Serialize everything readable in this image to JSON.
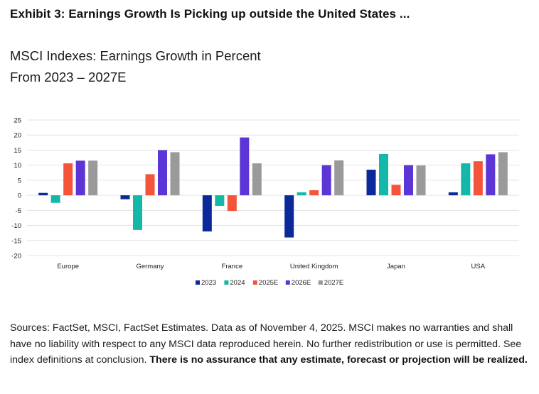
{
  "header": {
    "exhibit_title": "Exhibit 3: Earnings Growth Is Picking up outside the United States ...",
    "subtitle_line1": "MSCI Indexes: Earnings Growth in Percent",
    "subtitle_line2": "From 2023 – 2027E"
  },
  "chart_data": {
    "type": "bar",
    "title": "MSCI Indexes: Earnings Growth in Percent",
    "subtitle": "From 2023 – 2027E",
    "xlabel": "",
    "ylabel": "",
    "ylim": [
      -20,
      25
    ],
    "yticks": [
      25,
      20,
      15,
      10,
      5,
      0,
      -5,
      -10,
      -15,
      -20
    ],
    "grid": true,
    "legend_position": "bottom",
    "categories": [
      "Europe",
      "Germany",
      "France",
      "United Kingdom",
      "Japan",
      "USA"
    ],
    "series": [
      {
        "name": "2023",
        "color": "#0b2a99",
        "values": [
          0.8,
          -1.3,
          -12.0,
          -14.0,
          8.5,
          1.0
        ]
      },
      {
        "name": "2024",
        "color": "#13b8a8",
        "values": [
          -2.5,
          -11.5,
          -3.5,
          1.0,
          13.7,
          10.6
        ]
      },
      {
        "name": "2025E",
        "color": "#f4553a",
        "values": [
          10.6,
          7.0,
          -5.2,
          1.7,
          3.5,
          11.3
        ]
      },
      {
        "name": "2026E",
        "color": "#5b35d5",
        "values": [
          11.5,
          15.0,
          19.2,
          10.0,
          10.0,
          13.6
        ]
      },
      {
        "name": "2027E",
        "color": "#9a9a9a",
        "values": [
          11.5,
          14.3,
          10.6,
          11.6,
          9.9,
          14.3
        ]
      }
    ]
  },
  "footnote": {
    "text": "Sources: FactSet, MSCI, FactSet Estimates. Data as of November 4, 2025. MSCI makes no warranties and shall have no liability with respect to any MSCI data reproduced herein. No further redistribution or use is permitted. See index definitions at conclusion. ",
    "bold_text": "There is no assurance that any estimate, forecast or projection will be realized."
  }
}
